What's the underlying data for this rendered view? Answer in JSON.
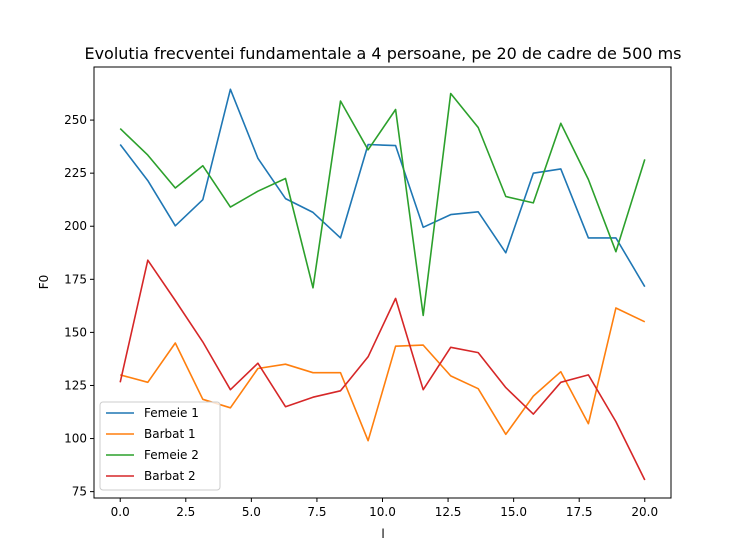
{
  "chart_data": {
    "type": "line",
    "title": "Evolutia frecventei fundamentale a 4 persoane, pe 20 de cadre de 500 ms",
    "xlabel": "l",
    "ylabel": "F0",
    "xlim": [
      -1.0,
      21.0
    ],
    "ylim": [
      72,
      275
    ],
    "xticks": [
      0.0,
      2.5,
      5.0,
      7.5,
      10.0,
      12.5,
      15.0,
      17.5,
      20.0
    ],
    "xtick_labels": [
      "0.0",
      "2.5",
      "5.0",
      "7.5",
      "10.0",
      "12.5",
      "15.0",
      "17.5",
      "20.0"
    ],
    "yticks": [
      75,
      100,
      125,
      150,
      175,
      200,
      225,
      250
    ],
    "ytick_labels": [
      "75",
      "100",
      "125",
      "150",
      "175",
      "200",
      "225",
      "250"
    ],
    "grid": false,
    "legend_position": "lower-left",
    "x": [
      0.0,
      1.05,
      2.1,
      3.15,
      4.2,
      5.25,
      6.3,
      7.35,
      8.4,
      9.45,
      10.5,
      11.55,
      12.6,
      13.65,
      14.7,
      15.75,
      16.8,
      17.85,
      18.9,
      20.0
    ],
    "series": [
      {
        "name": "Femeie 1",
        "color": "#1f77b4",
        "values": [
          238.5,
          221.5,
          200.2,
          212.5,
          264.5,
          232.0,
          213.0,
          206.5,
          194.5,
          238.5,
          238.0,
          199.5,
          205.5,
          206.8,
          187.5,
          225.0,
          227.0,
          194.5,
          194.5,
          171.5
        ]
      },
      {
        "name": "Barbat 1",
        "color": "#ff7f0e",
        "values": [
          130.0,
          126.5,
          145.0,
          118.5,
          114.5,
          133.0,
          135.0,
          131.0,
          131.0,
          99.0,
          143.5,
          144.0,
          129.5,
          123.5,
          102.0,
          120.0,
          131.5,
          107.0,
          161.5,
          155.0
        ]
      },
      {
        "name": "Femeie 2",
        "color": "#2ca02c",
        "values": [
          246.0,
          233.5,
          218.0,
          228.5,
          209.0,
          216.5,
          222.5,
          171.0,
          259.0,
          236.0,
          255.0,
          158.0,
          262.5,
          246.5,
          214.0,
          211.0,
          248.5,
          222.0,
          188.0,
          231.5
        ]
      },
      {
        "name": "Barbat 2",
        "color": "#d62728",
        "values": [
          126.5,
          184.0,
          165.0,
          145.5,
          123.0,
          135.5,
          115.0,
          119.5,
          122.5,
          138.5,
          166.0,
          123.0,
          143.0,
          140.5,
          124.0,
          111.5,
          126.5,
          130.0,
          108.0,
          80.5
        ]
      }
    ]
  }
}
